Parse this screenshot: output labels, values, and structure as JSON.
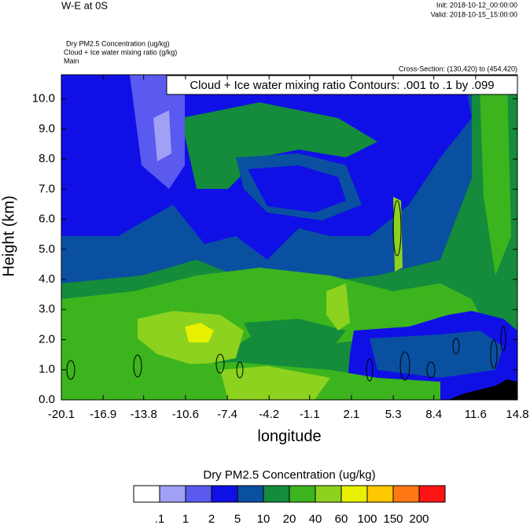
{
  "chart_data": {
    "type": "contour",
    "title": "W-E at 0S",
    "init": "Init: 2018-10-12_00:00:00",
    "valid": "Valid: 2018-10-15_15:00:00",
    "field_labels": [
      "Dry PM2.5 Concentration   (ug/kg)",
      "Cloud + Ice water mixing ratio   (g/kg)",
      "Main"
    ],
    "cross_section": "Cross-Section: (130,420) to (454,420)",
    "contour_note": "Cloud + Ice water mixing ratio Contours: .001 to .1 by .099",
    "xlabel": "longitude",
    "ylabel": "Height (km)",
    "xlim": [
      -20.1,
      14.8
    ],
    "xticks": [
      -20.1,
      -16.9,
      -13.8,
      -10.6,
      -7.4,
      -4.2,
      -1.1,
      2.1,
      5.3,
      8.4,
      11.6,
      14.8
    ],
    "ylim": [
      0,
      10.8
    ],
    "yticks": [
      {
        "value": 0,
        "label": "0.0"
      },
      {
        "value": 1,
        "label": "1.0"
      },
      {
        "value": 2,
        "label": "2.0"
      },
      {
        "value": 3,
        "label": "3.0"
      },
      {
        "value": 4,
        "label": "4.0"
      },
      {
        "value": 5,
        "label": "5.0"
      },
      {
        "value": 6,
        "label": "6.0"
      },
      {
        "value": 7,
        "label": "7.0"
      },
      {
        "value": 8,
        "label": "8.0"
      },
      {
        "value": 9,
        "label": "9.0"
      },
      {
        "value": 10,
        "label": "10.0"
      }
    ],
    "colorbar_title": "Dry PM2.5 Concentration  (ug/kg)",
    "levels": [
      {
        "value": 0.1,
        "label": ".1"
      },
      1,
      2,
      5,
      10,
      20,
      40,
      60,
      100,
      150,
      200
    ],
    "colors": [
      "#ffffff",
      "#a0a0f5",
      "#5a5af0",
      "#1010e6",
      "#0a50a0",
      "#148c3c",
      "#3cb41e",
      "#8cd21e",
      "#e6f000",
      "#ffc800",
      "#ff7814",
      "#ff1414"
    ],
    "terrain_color": "#000000"
  }
}
